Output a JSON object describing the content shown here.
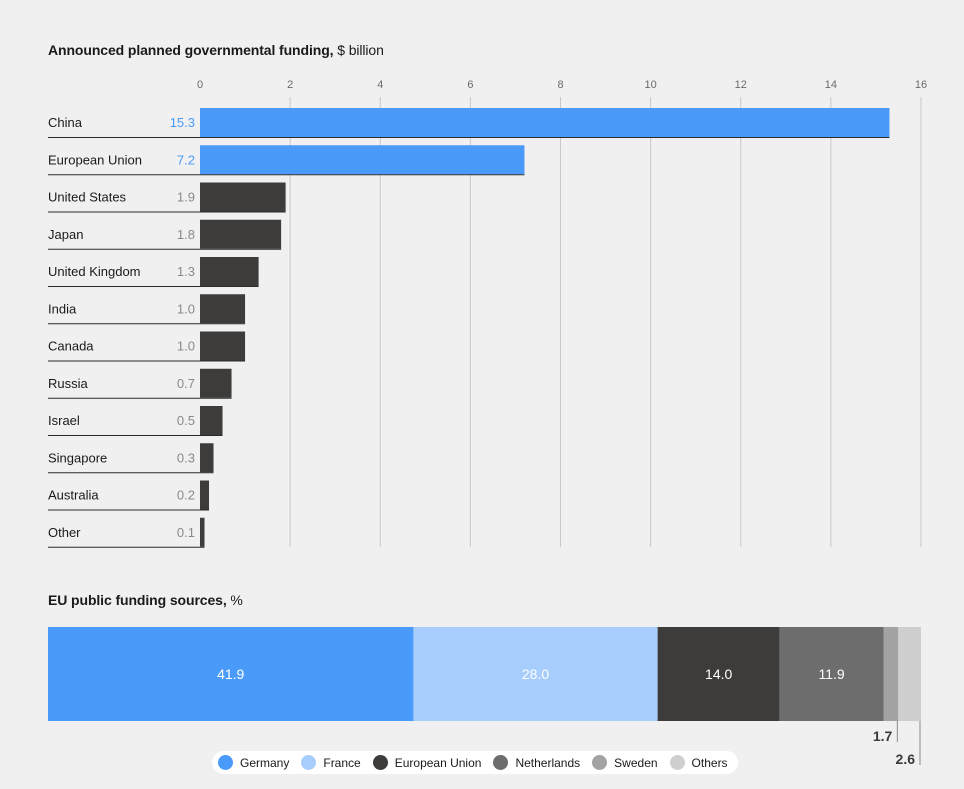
{
  "bar_chart": {
    "title_bold": "Announced planned governmental funding,",
    "title_unit": " $ billion"
  },
  "stack_chart": {
    "title_bold": "EU public funding sources,",
    "title_unit": " %"
  },
  "colors": {
    "highlight": "#4a9afa",
    "dark": "#3d3c3b",
    "france": "#a7cdfc",
    "netherlands": "#6d6d6d",
    "sweden": "#a3a3a3",
    "others": "#cfcfcf",
    "gridline": "#c8c8c8",
    "highlight_text": "#4a9afa",
    "muted_text": "#8a8a8a"
  },
  "chart_data": [
    {
      "type": "bar",
      "orientation": "horizontal",
      "title": "Announced planned governmental funding, $ billion",
      "categories": [
        "China",
        "European Union",
        "United States",
        "Japan",
        "United Kingdom",
        "India",
        "Canada",
        "Russia",
        "Israel",
        "Singapore",
        "Australia",
        "Other"
      ],
      "values": [
        15.3,
        7.2,
        1.9,
        1.8,
        1.3,
        1.0,
        1.0,
        0.7,
        0.5,
        0.3,
        0.2,
        0.1
      ],
      "value_labels": [
        "15.3",
        "7.2",
        "1.9",
        "1.8",
        "1.3",
        "1.0",
        "1.0",
        "0.7",
        "0.5",
        "0.3",
        "0.2",
        "0.1"
      ],
      "highlighted": [
        "China",
        "European Union"
      ],
      "xlim": [
        0,
        16
      ],
      "x_ticks": [
        0,
        2,
        4,
        6,
        8,
        10,
        12,
        14,
        16
      ],
      "grid": true
    },
    {
      "type": "bar",
      "stacked": true,
      "orientation": "horizontal",
      "title": "EU public funding sources, %",
      "series": [
        {
          "name": "Germany",
          "value": 41.9,
          "label": "41.9",
          "color": "#4a9afa"
        },
        {
          "name": "France",
          "value": 28.0,
          "label": "28.0",
          "color": "#a7cdfc"
        },
        {
          "name": "European Union",
          "value": 14.0,
          "label": "14.0",
          "color": "#3d3c3b"
        },
        {
          "name": "Netherlands",
          "value": 11.9,
          "label": "11.9",
          "color": "#6d6d6d"
        },
        {
          "name": "Sweden",
          "value": 1.7,
          "label": "1.7",
          "color": "#a3a3a3"
        },
        {
          "name": "Others",
          "value": 2.6,
          "label": "2.6",
          "color": "#cfcfcf"
        }
      ],
      "legend_position": "bottom-center"
    }
  ]
}
